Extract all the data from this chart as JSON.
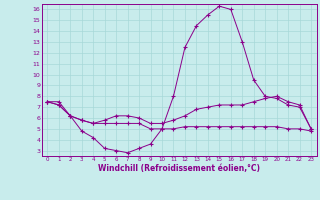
{
  "title": "",
  "xlabel": "Windchill (Refroidissement éolien,°C)",
  "background_color": "#c8ecec",
  "line_color": "#8b008b",
  "grid_color": "#a8d8d8",
  "x_values": [
    0,
    1,
    2,
    3,
    4,
    5,
    6,
    7,
    8,
    9,
    10,
    11,
    12,
    13,
    14,
    15,
    16,
    17,
    18,
    19,
    20,
    21,
    22,
    23
  ],
  "series1": [
    7.5,
    7.5,
    6.2,
    4.8,
    4.2,
    3.2,
    3.0,
    2.8,
    3.2,
    3.6,
    5.0,
    8.0,
    12.5,
    14.5,
    15.5,
    16.3,
    16.0,
    13.0,
    9.5,
    8.0,
    7.8,
    7.2,
    7.0,
    5.0
  ],
  "series2": [
    7.5,
    7.2,
    6.2,
    5.8,
    5.5,
    5.8,
    6.2,
    6.2,
    6.0,
    5.5,
    5.5,
    5.8,
    6.2,
    6.8,
    7.0,
    7.2,
    7.2,
    7.2,
    7.5,
    7.8,
    8.0,
    7.5,
    7.2,
    5.0
  ],
  "series3": [
    7.5,
    7.2,
    6.2,
    5.8,
    5.5,
    5.5,
    5.5,
    5.5,
    5.5,
    5.0,
    5.0,
    5.0,
    5.2,
    5.2,
    5.2,
    5.2,
    5.2,
    5.2,
    5.2,
    5.2,
    5.2,
    5.0,
    5.0,
    4.8
  ],
  "ylim": [
    2.5,
    16.5
  ],
  "xlim": [
    -0.5,
    23.5
  ],
  "yticks": [
    3,
    4,
    5,
    6,
    7,
    8,
    9,
    10,
    11,
    12,
    13,
    14,
    15,
    16
  ],
  "xticks": [
    0,
    1,
    2,
    3,
    4,
    5,
    6,
    7,
    8,
    9,
    10,
    11,
    12,
    13,
    14,
    15,
    16,
    17,
    18,
    19,
    20,
    21,
    22,
    23
  ]
}
